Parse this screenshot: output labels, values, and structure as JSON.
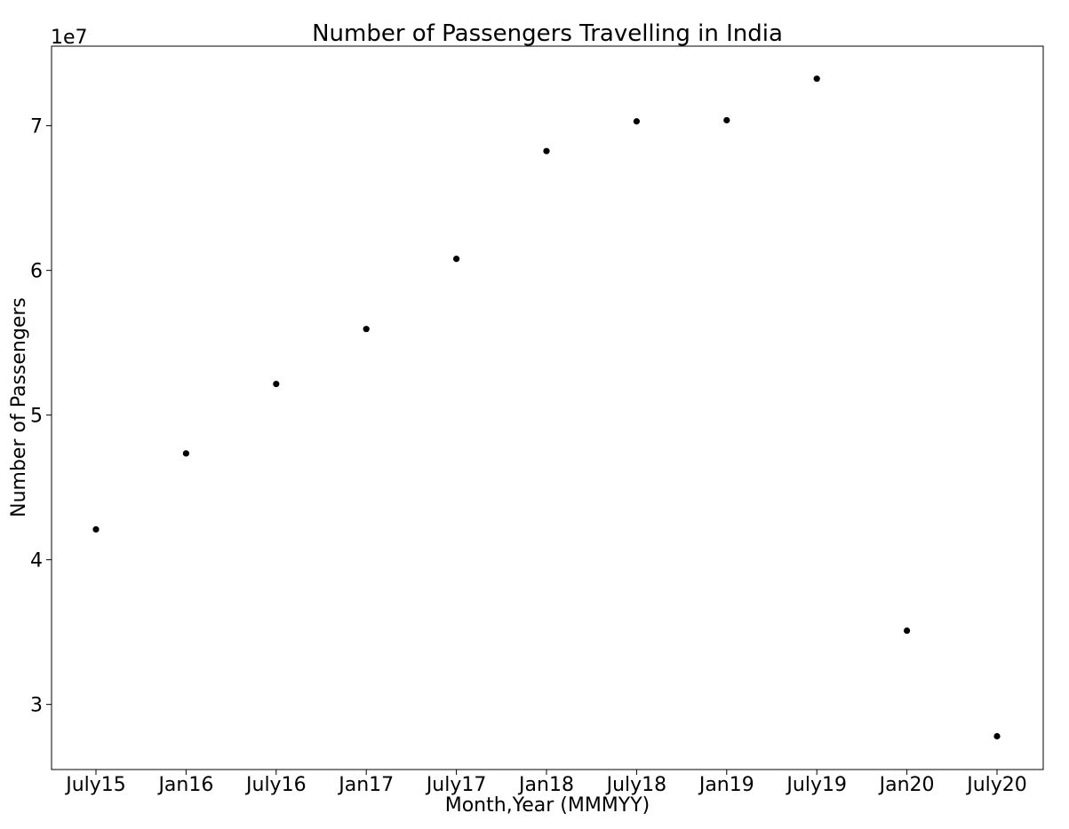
{
  "chart_data": {
    "type": "scatter",
    "title": "Number of Passengers Travelling in India",
    "xlabel": "Month,Year (MMMYY)",
    "ylabel": "Number of Passengers",
    "y_offset_label": "1e7",
    "categories": [
      "July15",
      "Jan16",
      "July16",
      "Jan17",
      "July17",
      "Jan18",
      "July18",
      "Jan19",
      "July19",
      "Jan20",
      "July20"
    ],
    "series": [
      {
        "values": [
          42100000,
          47350000,
          52150000,
          55950000,
          60800000,
          68250000,
          70300000,
          70380000,
          73250000,
          35100000,
          27800000
        ]
      }
    ],
    "y_ticks": [
      30000000,
      40000000,
      50000000,
      60000000,
      70000000
    ],
    "y_tick_labels": [
      "3",
      "4",
      "5",
      "6",
      "7"
    ],
    "ylim": [
      25500000,
      75500000
    ],
    "grid": false,
    "marker_color": "#000000"
  }
}
